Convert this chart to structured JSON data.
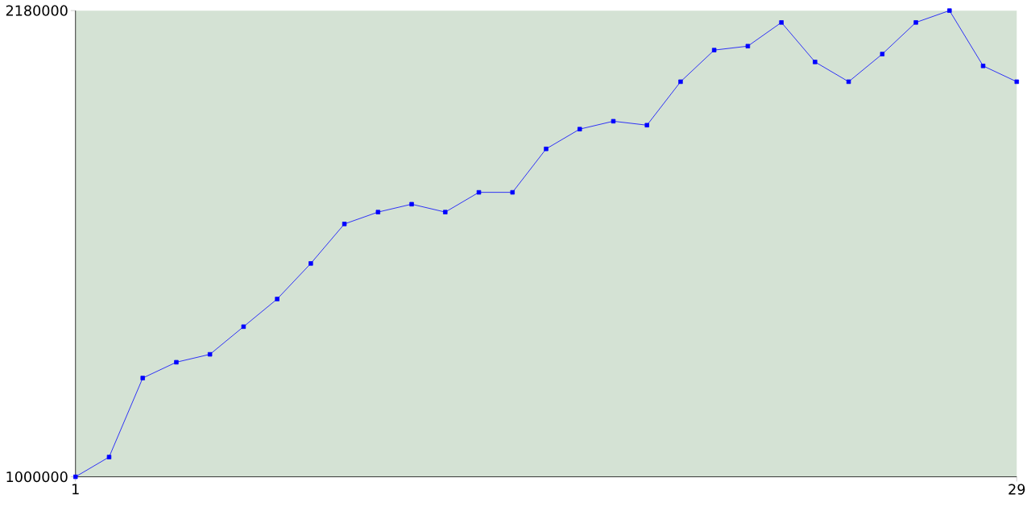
{
  "chart_data": {
    "type": "line",
    "x": [
      1,
      2,
      3,
      4,
      5,
      6,
      7,
      8,
      9,
      10,
      11,
      12,
      13,
      14,
      15,
      16,
      17,
      18,
      19,
      20,
      21,
      22,
      23,
      24,
      25,
      26,
      27,
      28,
      29
    ],
    "series": [
      {
        "color": "#0000ff",
        "values": [
          1000000,
          1050000,
          1250000,
          1290000,
          1310000,
          1380000,
          1450000,
          1540000,
          1640000,
          1670000,
          1690000,
          1670000,
          1720000,
          1720000,
          1830000,
          1880000,
          1900000,
          1890000,
          2000000,
          2080000,
          2090000,
          2150000,
          2050000,
          2000000,
          2070000,
          2150000,
          2180000,
          2040000,
          2000000
        ]
      }
    ],
    "xlim": [
      1,
      29
    ],
    "xticks": [
      1,
      29
    ],
    "ylim": [
      1000000,
      2180000
    ],
    "yticks": [
      1000000,
      2180000
    ],
    "marker": "square",
    "line_style": "solid",
    "grid": false
  }
}
